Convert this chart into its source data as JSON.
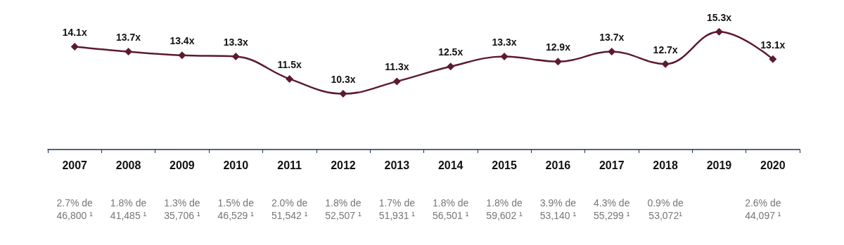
{
  "chart_data": {
    "type": "line",
    "categories": [
      "2007",
      "2008",
      "2009",
      "2010",
      "2011",
      "2012",
      "2013",
      "2014",
      "2015",
      "2016",
      "2017",
      "2018",
      "2019",
      "2020"
    ],
    "values": [
      14.1,
      13.7,
      13.4,
      13.3,
      11.5,
      10.3,
      11.3,
      12.5,
      13.3,
      12.9,
      13.7,
      12.7,
      15.3,
      13.1
    ],
    "value_labels": [
      "14.1x",
      "13.7x",
      "13.4x",
      "13.3x",
      "11.5x",
      "10.3x",
      "11.3x",
      "12.5x",
      "13.3x",
      "12.9x",
      "13.7x",
      "12.7x",
      "15.3x",
      "13.1x"
    ],
    "color": "#5c1a30",
    "marker": "diamond",
    "line_style": "solid",
    "grid": false,
    "tick_labels": "x",
    "annotations": [
      "2.7% de\n46,800 ¹",
      "1.8% de\n41,485 ¹",
      "1.3% de\n35,706 ¹",
      "1.5% de\n46,529 ¹",
      "2.0% de\n51,542 ¹",
      "1.8% de\n52,507 ¹",
      "1.7% de\n51,931 ¹",
      "1.8% de\n56,501 ¹",
      "1.8% de\n59,602 ¹",
      "3.9% de\n53,140 ¹",
      "4.3% de\n55,299 ¹",
      "0.9% de\n53,072¹",
      "2.6% de\n44,097 ¹"
    ]
  }
}
